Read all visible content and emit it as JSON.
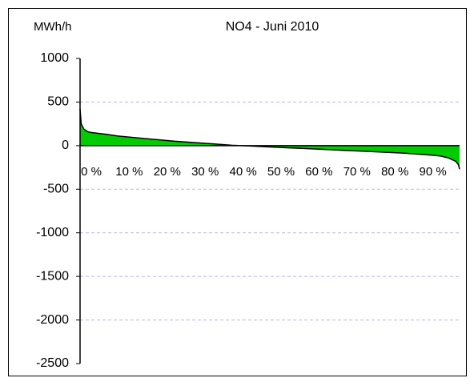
{
  "chart_data": {
    "type": "area",
    "title": "NO4 - Juni 2010",
    "y_label": "MWh/h",
    "x": [
      0,
      0.3,
      1,
      2,
      3,
      5,
      7,
      10,
      15,
      20,
      25,
      30,
      35,
      40,
      45,
      50,
      55,
      60,
      65,
      70,
      75,
      80,
      85,
      90,
      93,
      95,
      97,
      98,
      99,
      99.7,
      100
    ],
    "series": [
      {
        "color": "#00cc00",
        "values": [
          420,
          250,
          190,
          160,
          150,
          140,
          130,
          110,
          90,
          70,
          50,
          35,
          20,
          5,
          -5,
          -15,
          -25,
          -35,
          -45,
          -55,
          -65,
          -75,
          -85,
          -100,
          -110,
          -120,
          -140,
          -160,
          -180,
          -220,
          -270
        ]
      }
    ],
    "xlim": [
      0,
      100
    ],
    "xticks": [
      {
        "value": 0,
        "label": "0 %"
      },
      {
        "value": 10,
        "label": "10 %"
      },
      {
        "value": 20,
        "label": "20 %"
      },
      {
        "value": 30,
        "label": "30 %"
      },
      {
        "value": 40,
        "label": "40 %"
      },
      {
        "value": 50,
        "label": "50 %"
      },
      {
        "value": 60,
        "label": "60 %"
      },
      {
        "value": 70,
        "label": "70 %"
      },
      {
        "value": 80,
        "label": "80 %"
      },
      {
        "value": 90,
        "label": "90 %"
      }
    ],
    "ylim": [
      -2500,
      1000
    ],
    "yticks": [
      -2500,
      -2000,
      -1500,
      -1000,
      -500,
      0,
      500,
      1000
    ],
    "grid": true
  }
}
